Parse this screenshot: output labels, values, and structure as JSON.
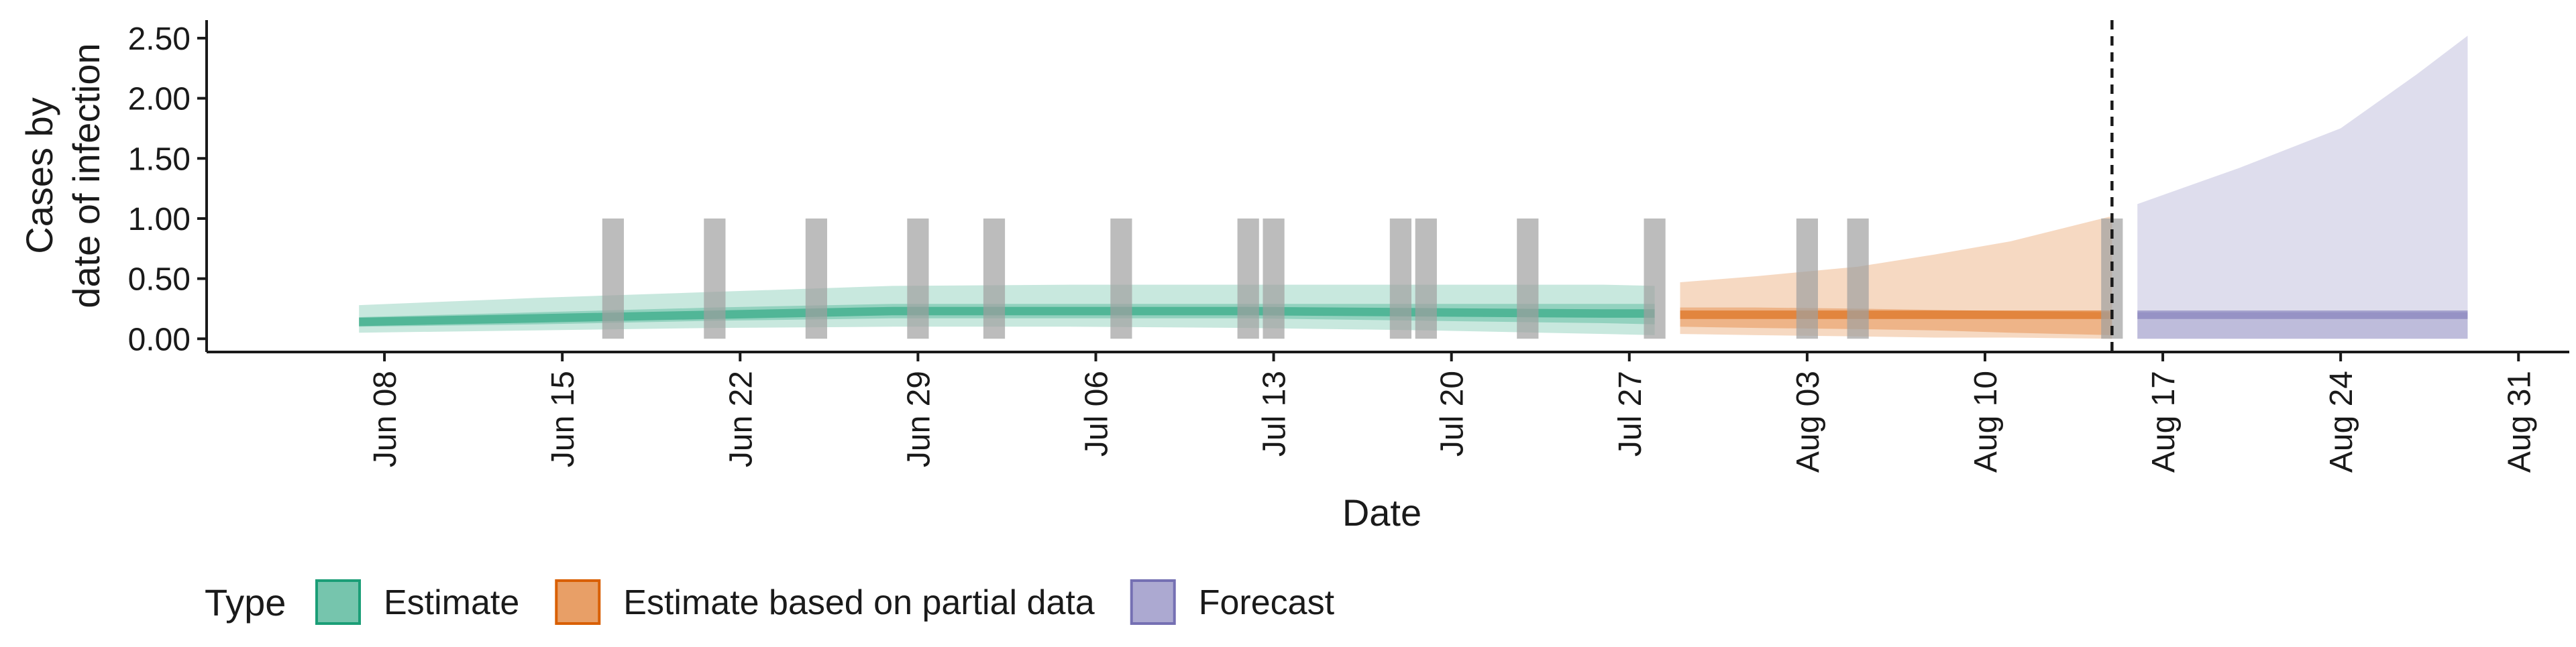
{
  "chart_data": {
    "type": "area",
    "xlabel": "Date",
    "ylabel_lines": [
      "Cases by",
      "date of infection"
    ],
    "x_ticks": [
      {
        "date": "2020-06-08",
        "label": "Jun 08"
      },
      {
        "date": "2020-06-15",
        "label": "Jun 15"
      },
      {
        "date": "2020-06-22",
        "label": "Jun 22"
      },
      {
        "date": "2020-06-29",
        "label": "Jun 29"
      },
      {
        "date": "2020-07-06",
        "label": "Jul 06"
      },
      {
        "date": "2020-07-13",
        "label": "Jul 13"
      },
      {
        "date": "2020-07-20",
        "label": "Jul 20"
      },
      {
        "date": "2020-07-27",
        "label": "Jul 27"
      },
      {
        "date": "2020-08-03",
        "label": "Aug 03"
      },
      {
        "date": "2020-08-10",
        "label": "Aug 10"
      },
      {
        "date": "2020-08-17",
        "label": "Aug 17"
      },
      {
        "date": "2020-08-24",
        "label": "Aug 24"
      },
      {
        "date": "2020-08-31",
        "label": "Aug 31"
      }
    ],
    "xlim": [
      "2020-06-01",
      "2020-09-02"
    ],
    "y_ticks": [
      0,
      0.5,
      1,
      1.5,
      2,
      2.5
    ],
    "y_tick_labels": [
      "0.00",
      "0.50",
      "1.00",
      "1.50",
      "2.00",
      "2.50"
    ],
    "ylim": [
      -0.11,
      2.65
    ],
    "legend": {
      "title": "Type",
      "position": "bottom",
      "entries": [
        {
          "label": "Estimate",
          "color": "#1b9e77"
        },
        {
          "label": "Estimate based on partial data",
          "color": "#d95f02"
        },
        {
          "label": "Forecast",
          "color": "#7570b3"
        }
      ]
    },
    "bars": {
      "color": "#a0a0a0",
      "value": 1.0,
      "dates": [
        "2020-06-17",
        "2020-06-21",
        "2020-06-25",
        "2020-06-29",
        "2020-07-02",
        "2020-07-07",
        "2020-07-12",
        "2020-07-13",
        "2020-07-18",
        "2020-07-19",
        "2020-07-23",
        "2020-07-28",
        "2020-08-03",
        "2020-08-05",
        "2020-08-15"
      ]
    },
    "vline": {
      "date": "2020-08-15",
      "style": "dashed"
    },
    "series": [
      {
        "name": "Estimate",
        "color": "#1b9e77",
        "x": [
          "2020-06-07",
          "2020-06-14",
          "2020-06-21",
          "2020-06-28",
          "2020-07-05",
          "2020-07-12",
          "2020-07-19",
          "2020-07-26",
          "2020-07-28"
        ],
        "median": [
          0.14,
          0.17,
          0.2,
          0.23,
          0.23,
          0.23,
          0.22,
          0.21,
          0.21
        ],
        "lower50": [
          0.1,
          0.12,
          0.15,
          0.17,
          0.17,
          0.17,
          0.15,
          0.13,
          0.12
        ],
        "upper50": [
          0.18,
          0.22,
          0.26,
          0.29,
          0.29,
          0.29,
          0.29,
          0.29,
          0.29
        ],
        "lower90": [
          0.05,
          0.07,
          0.09,
          0.1,
          0.1,
          0.09,
          0.07,
          0.04,
          0.03
        ],
        "upper90": [
          0.28,
          0.34,
          0.39,
          0.44,
          0.45,
          0.45,
          0.45,
          0.45,
          0.44
        ]
      },
      {
        "name": "Estimate based on partial data",
        "color": "#d95f02",
        "x": [
          "2020-07-29",
          "2020-08-01",
          "2020-08-05",
          "2020-08-08",
          "2020-08-11",
          "2020-08-15"
        ],
        "median": [
          0.2,
          0.2,
          0.2,
          0.2,
          0.2,
          0.2
        ],
        "lower50": [
          0.1,
          0.09,
          0.08,
          0.07,
          0.05,
          0.03
        ],
        "upper50": [
          0.26,
          0.26,
          0.25,
          0.24,
          0.23,
          0.22
        ],
        "lower90": [
          0.04,
          0.03,
          0.02,
          0.01,
          0.01,
          0.0
        ],
        "upper90": [
          0.47,
          0.52,
          0.6,
          0.7,
          0.81,
          1.02
        ]
      },
      {
        "name": "Forecast",
        "color": "#7570b3",
        "x": [
          "2020-08-16",
          "2020-08-20",
          "2020-08-24",
          "2020-08-27",
          "2020-08-29"
        ],
        "median": [
          0.2,
          0.2,
          0.2,
          0.2,
          0.2
        ],
        "lower50": [
          0.0,
          0.0,
          0.0,
          0.0,
          0.0
        ],
        "upper50": [
          0.22,
          0.22,
          0.22,
          0.22,
          0.22
        ],
        "lower90": [
          0.0,
          0.0,
          0.0,
          0.0,
          0.0
        ],
        "upper90": [
          1.12,
          1.42,
          1.75,
          2.2,
          2.52
        ]
      }
    ]
  }
}
